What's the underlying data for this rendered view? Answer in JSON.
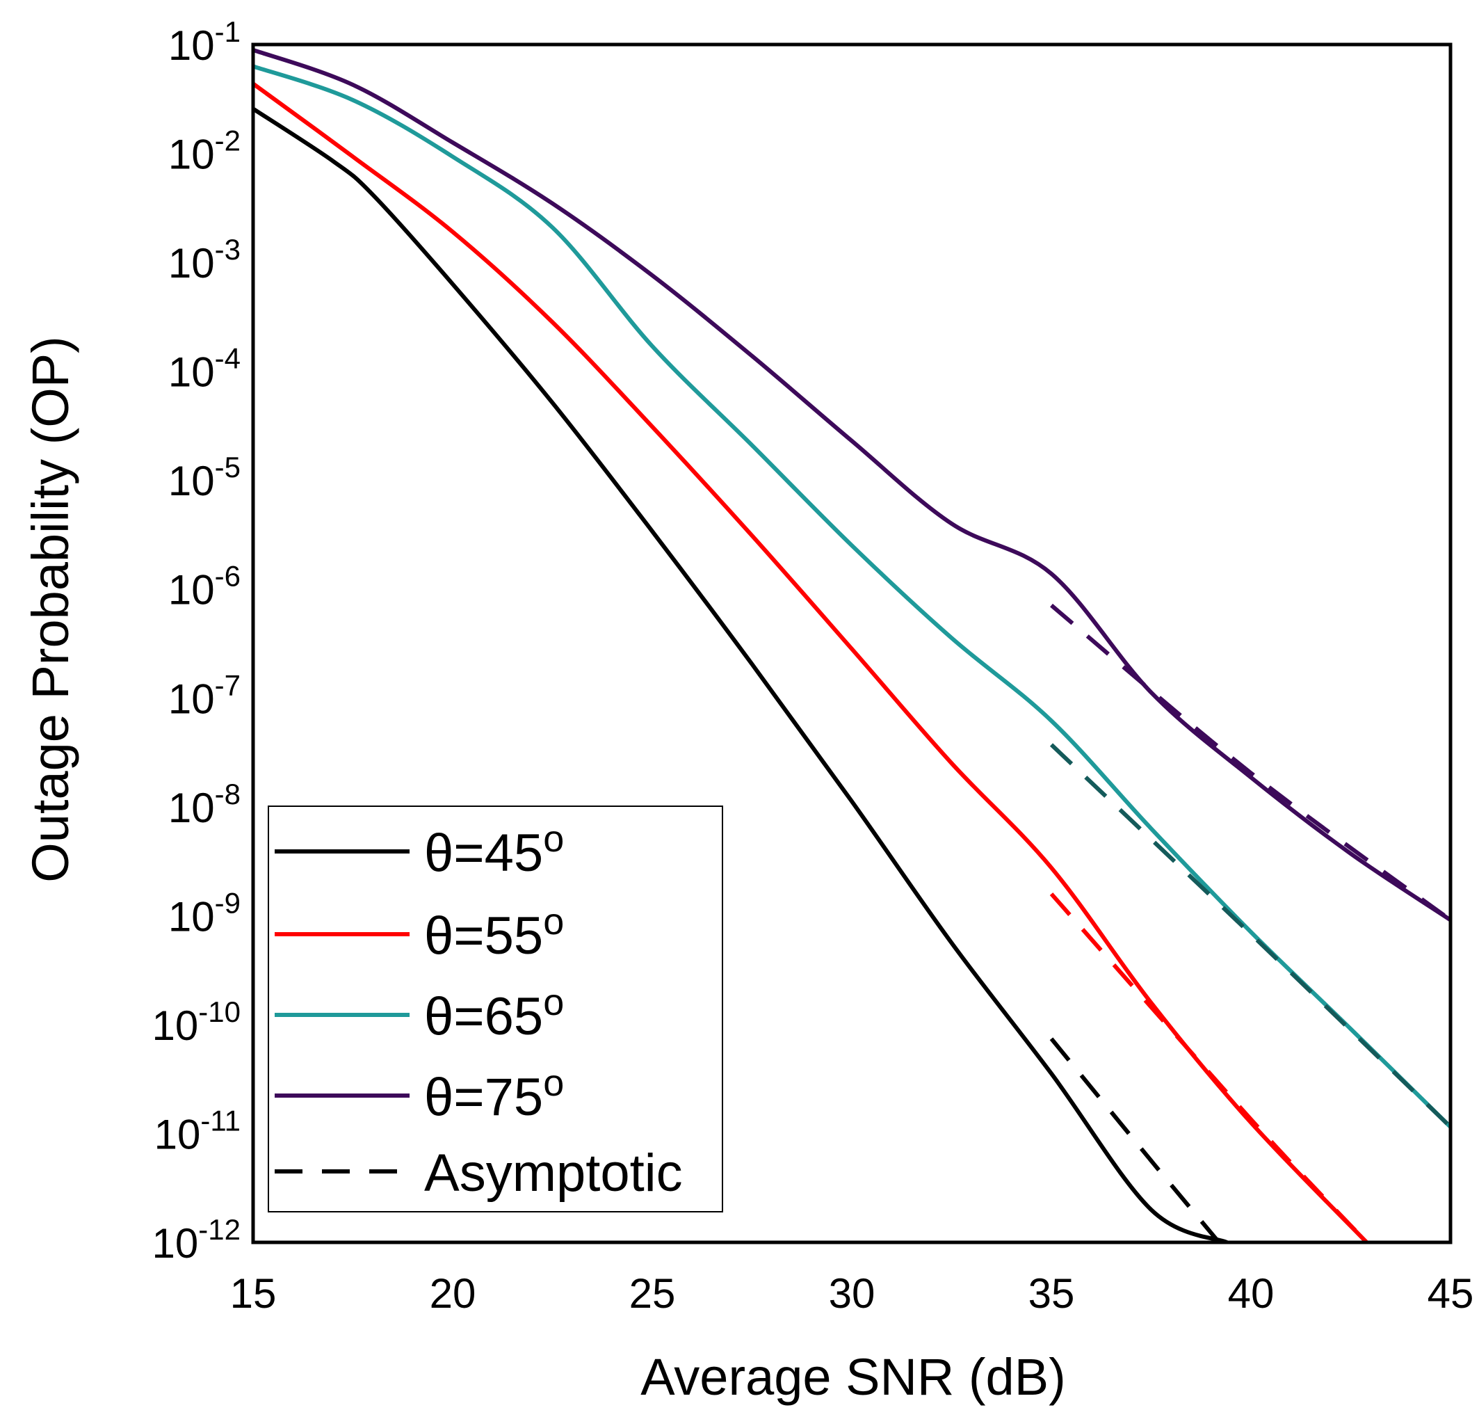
{
  "chart_data": {
    "type": "line",
    "title": "",
    "xlabel": "Average SNR (dB)",
    "ylabel": "Outage Probability (OP)",
    "xlim": [
      15,
      45
    ],
    "ylim_log10": [
      -12,
      -1
    ],
    "yscale": "log",
    "x_ticks": [
      "15",
      "20",
      "25",
      "30",
      "35",
      "40",
      "45"
    ],
    "x_tick_values": [
      15,
      20,
      25,
      30,
      35,
      40,
      45
    ],
    "y_ticks": [
      {
        "base": "10",
        "exp": "-1"
      },
      {
        "base": "10",
        "exp": "-2"
      },
      {
        "base": "10",
        "exp": "-3"
      },
      {
        "base": "10",
        "exp": "-4"
      },
      {
        "base": "10",
        "exp": "-5"
      },
      {
        "base": "10",
        "exp": "-6"
      },
      {
        "base": "10",
        "exp": "-7"
      },
      {
        "base": "10",
        "exp": "-8"
      },
      {
        "base": "10",
        "exp": "-9"
      },
      {
        "base": "10",
        "exp": "-10"
      },
      {
        "base": "10",
        "exp": "-11"
      },
      {
        "base": "10",
        "exp": "-12"
      }
    ],
    "grid": false,
    "legend_position": "bottom-left",
    "series": [
      {
        "name": "θ=45",
        "degree": "o",
        "color": "#000000",
        "style": "solid",
        "x": [
          15,
          17,
          18,
          20,
          22.5,
          25,
          27.5,
          30,
          32.5,
          35,
          37.5,
          39.4
        ],
        "log10_y": [
          -1.59,
          -2.07,
          -2.38,
          -3.2,
          -4.29,
          -5.47,
          -6.69,
          -7.95,
          -9.25,
          -10.45,
          -11.7,
          -12
        ]
      },
      {
        "name": "θ=55",
        "degree": "o",
        "color": "#ff0000",
        "style": "solid",
        "x": [
          15,
          17.5,
          20,
          22.5,
          25,
          27.5,
          30,
          32.5,
          35,
          37.5,
          40,
          42.9
        ],
        "log10_y": [
          -1.36,
          -2.03,
          -2.72,
          -3.55,
          -4.51,
          -5.51,
          -6.55,
          -7.6,
          -8.56,
          -9.8,
          -10.9,
          -12
        ]
      },
      {
        "name": "θ=65",
        "degree": "o",
        "color": "#1f9a9a",
        "style": "solid",
        "x": [
          15,
          17.5,
          20,
          22.5,
          25,
          27.5,
          30,
          32.5,
          35,
          37.5,
          40,
          42.5,
          45
        ],
        "log10_y": [
          -1.2,
          -1.51,
          -2.03,
          -2.68,
          -3.77,
          -4.68,
          -5.6,
          -6.45,
          -7.21,
          -8.2,
          -9.15,
          -10.04,
          -10.94
        ]
      },
      {
        "name": "θ=75",
        "degree": "o",
        "color": "#3d0a5a",
        "style": "solid",
        "x": [
          15,
          17.5,
          20,
          22.5,
          25,
          27.5,
          30,
          32.5,
          35,
          37.5,
          40,
          42.5,
          45
        ],
        "log10_y": [
          -1.05,
          -1.37,
          -1.9,
          -2.46,
          -3.12,
          -3.86,
          -4.64,
          -5.4,
          -5.86,
          -6.95,
          -7.73,
          -8.43,
          -9.04
        ]
      },
      {
        "name": "Asymptotic",
        "degree": "",
        "color": "#000000",
        "style": "dashed",
        "curves": [
          {
            "color": "#000000",
            "x": [
              35,
              37.5,
              39.2
            ],
            "log10_y": [
              -10.13,
              -11.25,
              -12
            ]
          },
          {
            "color": "#ff0000",
            "x": [
              35,
              40,
              42.9
            ],
            "log10_y": [
              -8.8,
              -10.87,
              -12
            ]
          },
          {
            "color": "#145a5a",
            "x": [
              35,
              40,
              45
            ],
            "log10_y": [
              -7.43,
              -9.17,
              -10.94
            ]
          },
          {
            "color": "#3d0a5a",
            "x": [
              35,
              40,
              45
            ],
            "log10_y": [
              -6.15,
              -7.69,
              -9.04
            ]
          }
        ]
      }
    ]
  }
}
